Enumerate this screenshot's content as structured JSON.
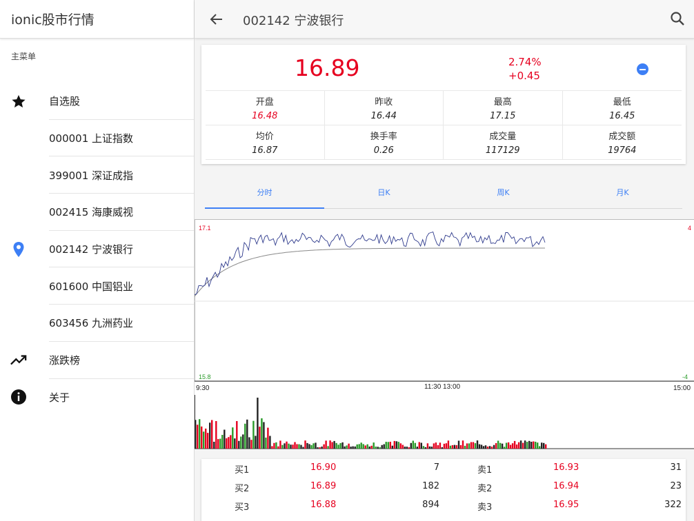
{
  "sidebar": {
    "app_title": "ionic股市行情",
    "menu_title": "主菜单",
    "items": [
      {
        "label": "自选股",
        "icon": "star-icon"
      },
      {
        "label": "000001 上证指数",
        "icon": ""
      },
      {
        "label": "399001 深证成指",
        "icon": ""
      },
      {
        "label": "002415 海康威视",
        "icon": ""
      },
      {
        "label": "002142 宁波银行",
        "icon": "location-pin-icon"
      },
      {
        "label": "601600 中国铝业",
        "icon": ""
      },
      {
        "label": "603456 九洲药业",
        "icon": ""
      },
      {
        "label": "涨跌榜",
        "icon": "trending-up-icon"
      },
      {
        "label": "关于",
        "icon": "info-icon"
      }
    ]
  },
  "toolbar": {
    "title": "002142 宁波银行"
  },
  "quote": {
    "price": "16.89",
    "change_pct": "2.74%",
    "change": "+0.45",
    "stats": [
      {
        "label": "开盘",
        "value": "16.48",
        "highlight": true
      },
      {
        "label": "昨收",
        "value": "16.44",
        "highlight": false
      },
      {
        "label": "最高",
        "value": "17.15",
        "highlight": false
      },
      {
        "label": "最低",
        "value": "16.45",
        "highlight": false
      },
      {
        "label": "均价",
        "value": "16.87",
        "highlight": false
      },
      {
        "label": "换手率",
        "value": "0.26",
        "highlight": false
      },
      {
        "label": "成交量",
        "value": "117129",
        "highlight": false
      },
      {
        "label": "成交额",
        "value": "19764",
        "highlight": false
      }
    ]
  },
  "tabs": [
    {
      "label": "分时",
      "active": true
    },
    {
      "label": "日K",
      "active": false
    },
    {
      "label": "周K",
      "active": false
    },
    {
      "label": "月K",
      "active": false
    }
  ],
  "chart": {
    "y_max_label": "17.1",
    "y_min_label": "15.8",
    "right_max_label": "4",
    "right_min_label": "-4",
    "time_labels": [
      "9:30",
      "11:30 13:00",
      "15:00"
    ]
  },
  "colors": {
    "up": "#e6001f",
    "down": "#2a9b2a",
    "accent": "#3d7ff5",
    "price_line": "#2e3a8c",
    "avg_line": "#888888"
  },
  "order_book": {
    "rows": [
      {
        "buy_label": "买1",
        "buy_price": "16.90",
        "buy_vol": "7",
        "sell_label": "卖1",
        "sell_price": "16.93",
        "sell_vol": "31"
      },
      {
        "buy_label": "买2",
        "buy_price": "16.89",
        "buy_vol": "182",
        "sell_label": "卖2",
        "sell_price": "16.94",
        "sell_vol": "23"
      },
      {
        "buy_label": "买3",
        "buy_price": "16.88",
        "buy_vol": "894",
        "sell_label": "卖3",
        "sell_price": "16.95",
        "sell_vol": "322"
      }
    ]
  }
}
